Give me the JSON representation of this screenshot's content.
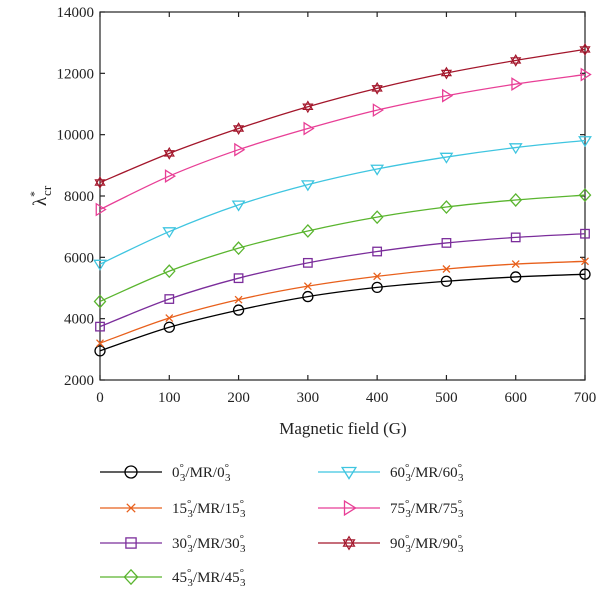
{
  "chart_data": {
    "type": "line",
    "xlabel": "Magnetic field (G)",
    "ylabel": "λ*cr",
    "ylabel_main": "λ",
    "ylabel_sup": "*",
    "ylabel_sub": "cr",
    "xlim": [
      0,
      700
    ],
    "ylim": [
      2000,
      14000
    ],
    "x_ticks": [
      0,
      100,
      200,
      300,
      400,
      500,
      600,
      700
    ],
    "y_ticks": [
      2000,
      4000,
      6000,
      8000,
      10000,
      12000,
      14000
    ],
    "grid": false,
    "legend_position": "bottom",
    "x": [
      0,
      100,
      200,
      300,
      400,
      500,
      600,
      700
    ],
    "series": [
      {
        "name": "0°3/MR/0°3",
        "base": "0",
        "color": "#000000",
        "marker": "circle",
        "values": [
          2950,
          3720,
          4280,
          4720,
          5020,
          5220,
          5360,
          5450
        ]
      },
      {
        "name": "15°3/MR/15°3",
        "base": "15",
        "color": "#e8601c",
        "marker": "x",
        "values": [
          3200,
          4020,
          4620,
          5060,
          5380,
          5620,
          5780,
          5870
        ]
      },
      {
        "name": "30°3/MR/30°3",
        "base": "30",
        "color": "#7b2d9b",
        "marker": "square",
        "values": [
          3740,
          4640,
          5320,
          5820,
          6190,
          6470,
          6650,
          6770
        ]
      },
      {
        "name": "45°3/MR/45°3",
        "base": "45",
        "color": "#5ab52f",
        "marker": "diamond",
        "values": [
          4560,
          5550,
          6300,
          6860,
          7310,
          7640,
          7870,
          8030
        ]
      },
      {
        "name": "60°3/MR/60°3",
        "base": "60",
        "color": "#3fc5e0",
        "marker": "triangle-down",
        "values": [
          5780,
          6840,
          7710,
          8370,
          8880,
          9270,
          9580,
          9810
        ]
      },
      {
        "name": "75°3/MR/75°3",
        "base": "75",
        "color": "#e83f96",
        "marker": "triangle-right",
        "values": [
          7560,
          8650,
          9510,
          10200,
          10800,
          11270,
          11650,
          11960
        ]
      },
      {
        "name": "90°3/MR/90°3",
        "base": "90",
        "color": "#a3162b",
        "marker": "star",
        "values": [
          8440,
          9390,
          10200,
          10910,
          11510,
          12010,
          12420,
          12780
        ]
      }
    ]
  }
}
